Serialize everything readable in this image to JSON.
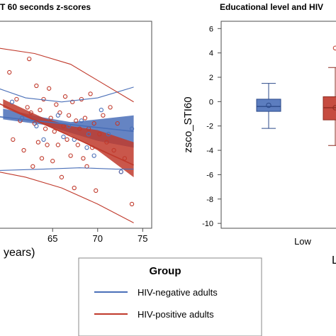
{
  "left_panel": {
    "title": "T 60 seconds z-scores",
    "xlabel": "years)",
    "x_ticks": [
      65,
      70,
      75
    ],
    "chart_data": {
      "type": "scatter",
      "title": "T 60 seconds z-scores",
      "xlabel": "years)",
      "ylabel": "",
      "xlim": [
        59,
        76
      ],
      "ylim": [
        -3.5,
        4.2
      ],
      "grid": false,
      "series": [
        {
          "name": "HIV-negative adults",
          "color": "#4a6fb8",
          "points": [
            [
              60.5,
              1.2
            ],
            [
              61.6,
              0.6
            ],
            [
              63.2,
              0.3
            ],
            [
              64.0,
              -0.2
            ],
            [
              65.6,
              0.7
            ],
            [
              66.2,
              -0.1
            ],
            [
              66.8,
              0.3
            ],
            [
              67.4,
              -0.2
            ],
            [
              68.2,
              0.5
            ],
            [
              68.8,
              -0.5
            ],
            [
              69.0,
              0.0
            ],
            [
              69.6,
              -0.8
            ],
            [
              70.4,
              0.9
            ],
            [
              71.2,
              0.0
            ],
            [
              72.6,
              -1.4
            ],
            [
              73.8,
              0.2
            ]
          ],
          "fit_line": [
            [
              59,
              0.65
            ],
            [
              74,
              0.1
            ]
          ],
          "ci_band": [
            [
              59.5,
              0.95,
              0.55
            ],
            [
              64,
              0.62,
              0.35
            ],
            [
              67,
              0.45,
              0.05
            ],
            [
              70,
              0.55,
              -0.25
            ],
            [
              74,
              0.7,
              -0.5
            ]
          ],
          "prediction_upper": [
            [
              59,
              1.7
            ],
            [
              62,
              1.35
            ],
            [
              66,
              1.2
            ],
            [
              70,
              1.35
            ],
            [
              74,
              1.75
            ]
          ],
          "prediction_lower": [
            [
              59,
              -1.35
            ],
            [
              64,
              -1.3
            ],
            [
              68,
              -1.25
            ],
            [
              72,
              -1.3
            ],
            [
              74,
              -1.3
            ]
          ]
        },
        {
          "name": "HIV-positive adults",
          "color": "#c0392b",
          "points": [
            [
              60.2,
              2.3
            ],
            [
              60.6,
              -0.2
            ],
            [
              61.0,
              1.3
            ],
            [
              61.4,
              0.5
            ],
            [
              61.8,
              -0.6
            ],
            [
              62.2,
              1.0
            ],
            [
              62.4,
              2.8
            ],
            [
              62.6,
              0.8
            ],
            [
              62.8,
              -1.2
            ],
            [
              63.0,
              0.4
            ],
            [
              63.2,
              1.8
            ],
            [
              63.4,
              -0.3
            ],
            [
              63.6,
              0.9
            ],
            [
              63.8,
              -0.9
            ],
            [
              64.0,
              1.3
            ],
            [
              64.2,
              0.2
            ],
            [
              64.4,
              -0.4
            ],
            [
              64.6,
              1.7
            ],
            [
              64.8,
              0.6
            ],
            [
              65.0,
              -1.0
            ],
            [
              65.2,
              0.1
            ],
            [
              65.4,
              1.1
            ],
            [
              65.6,
              -0.4
            ],
            [
              65.8,
              0.8
            ],
            [
              66.0,
              -1.6
            ],
            [
              66.2,
              0.3
            ],
            [
              66.4,
              1.4
            ],
            [
              66.6,
              -0.2
            ],
            [
              66.8,
              0.7
            ],
            [
              67.0,
              -0.8
            ],
            [
              67.2,
              1.2
            ],
            [
              67.4,
              -2.0
            ],
            [
              67.6,
              0.5
            ],
            [
              67.8,
              -0.4
            ],
            [
              68.0,
              0.2
            ],
            [
              68.2,
              1.3
            ],
            [
              68.4,
              -0.9
            ],
            [
              68.6,
              0.6
            ],
            [
              68.8,
              -1.2
            ],
            [
              69.0,
              0.2
            ],
            [
              69.2,
              1.5
            ],
            [
              69.4,
              -0.5
            ],
            [
              69.6,
              0.4
            ],
            [
              69.8,
              -2.1
            ],
            [
              70.2,
              0.0
            ],
            [
              70.6,
              0.7
            ],
            [
              71.0,
              -0.3
            ],
            [
              71.4,
              1.0
            ],
            [
              71.8,
              -0.6
            ],
            [
              72.2,
              0.4
            ],
            [
              72.6,
              -1.4
            ],
            [
              73.0,
              -0.9
            ],
            [
              73.8,
              -2.6
            ]
          ],
          "fit_line": [
            [
              59,
              1.15
            ],
            [
              74,
              -1.15
            ]
          ],
          "ci_band": [
            [
              59.5,
              1.3,
              1.0
            ],
            [
              64,
              0.6,
              0.35
            ],
            [
              67,
              0.3,
              -0.05
            ],
            [
              70,
              0.15,
              -0.6
            ],
            [
              74,
              -0.3,
              -1.6
            ]
          ],
          "prediction_upper": [
            [
              59,
              3.2
            ],
            [
              63,
              3.0
            ],
            [
              67,
              2.6
            ],
            [
              70,
              2.0
            ],
            [
              74,
              1.2
            ]
          ],
          "prediction_lower": [
            [
              59,
              -1.4
            ],
            [
              62,
              -1.6
            ],
            [
              66,
              -2.0
            ],
            [
              70,
              -2.6
            ],
            [
              74,
              -3.3
            ]
          ]
        }
      ]
    }
  },
  "right_panel": {
    "title": "Educational level and HIV",
    "ylabel": "zsco_STI60",
    "category_label": "Low",
    "y_ticks": [
      6,
      4,
      2,
      0,
      -2,
      -4,
      -6,
      -8,
      -10
    ],
    "x_axis_label_partial": "L",
    "chart_data": {
      "type": "box",
      "title": "Educational level and HIV",
      "ylabel": "zsco_STI60",
      "ylim": [
        -10.4,
        6.6
      ],
      "categories": [
        "Low"
      ],
      "series": [
        {
          "name": "HIV-negative adults",
          "color": "#4a6fb8",
          "whisker_low": -2.2,
          "q1": -0.8,
          "median": -0.4,
          "mean": -0.3,
          "q3": 0.2,
          "whisker_high": 1.5,
          "outliers": []
        },
        {
          "name": "HIV-positive adults",
          "color": "#c0392b",
          "whisker_low": -3.6,
          "q1": -1.5,
          "median": -0.5,
          "mean": -0.5,
          "q3": 0.4,
          "whisker_high": 2.8,
          "outliers": [
            4.4
          ]
        }
      ]
    }
  },
  "legend": {
    "title": "Group",
    "items": [
      {
        "label": "HIV-negative adults",
        "color": "#4a6fb8"
      },
      {
        "label": "HIV-positive adults",
        "color": "#c0392b"
      }
    ]
  }
}
